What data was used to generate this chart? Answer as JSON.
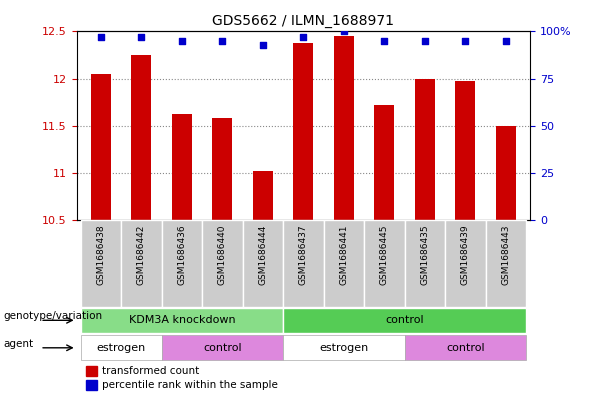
{
  "title": "GDS5662 / ILMN_1688971",
  "samples": [
    "GSM1686438",
    "GSM1686442",
    "GSM1686436",
    "GSM1686440",
    "GSM1686444",
    "GSM1686437",
    "GSM1686441",
    "GSM1686445",
    "GSM1686435",
    "GSM1686439",
    "GSM1686443"
  ],
  "bar_values": [
    12.05,
    12.25,
    11.62,
    11.58,
    11.02,
    12.38,
    12.45,
    11.72,
    12.0,
    11.97,
    11.5
  ],
  "percentile_values": [
    97,
    97,
    95,
    95,
    93,
    97,
    100,
    95,
    95,
    95,
    95
  ],
  "bar_color": "#cc0000",
  "dot_color": "#0000cc",
  "ylim_left": [
    10.5,
    12.5
  ],
  "ylim_right": [
    0,
    100
  ],
  "yticks_left": [
    10.5,
    11.0,
    11.5,
    12.0,
    12.5
  ],
  "yticks_right": [
    0,
    25,
    50,
    75,
    100
  ],
  "ytick_labels_left": [
    "10.5",
    "11",
    "11.5",
    "12",
    "12.5"
  ],
  "ytick_labels_right": [
    "0",
    "25",
    "50",
    "75",
    "100%"
  ],
  "genotype_labels": [
    {
      "text": "KDM3A knockdown",
      "start": 0,
      "end": 4,
      "color": "#88dd88"
    },
    {
      "text": "control",
      "start": 5,
      "end": 10,
      "color": "#55cc55"
    }
  ],
  "agent_labels": [
    {
      "text": "estrogen",
      "start": 0,
      "end": 1,
      "color": "#ffffff"
    },
    {
      "text": "control",
      "start": 2,
      "end": 4,
      "color": "#dd88dd"
    },
    {
      "text": "estrogen",
      "start": 5,
      "end": 7,
      "color": "#ffffff"
    },
    {
      "text": "control",
      "start": 8,
      "end": 10,
      "color": "#dd88dd"
    }
  ],
  "genotype_row_label": "genotype/variation",
  "agent_row_label": "agent",
  "legend_bar_label": "transformed count",
  "legend_dot_label": "percentile rank within the sample",
  "tick_color_left": "#cc0000",
  "tick_color_right": "#0000cc",
  "background_color": "#ffffff",
  "grid_color": "#888888"
}
